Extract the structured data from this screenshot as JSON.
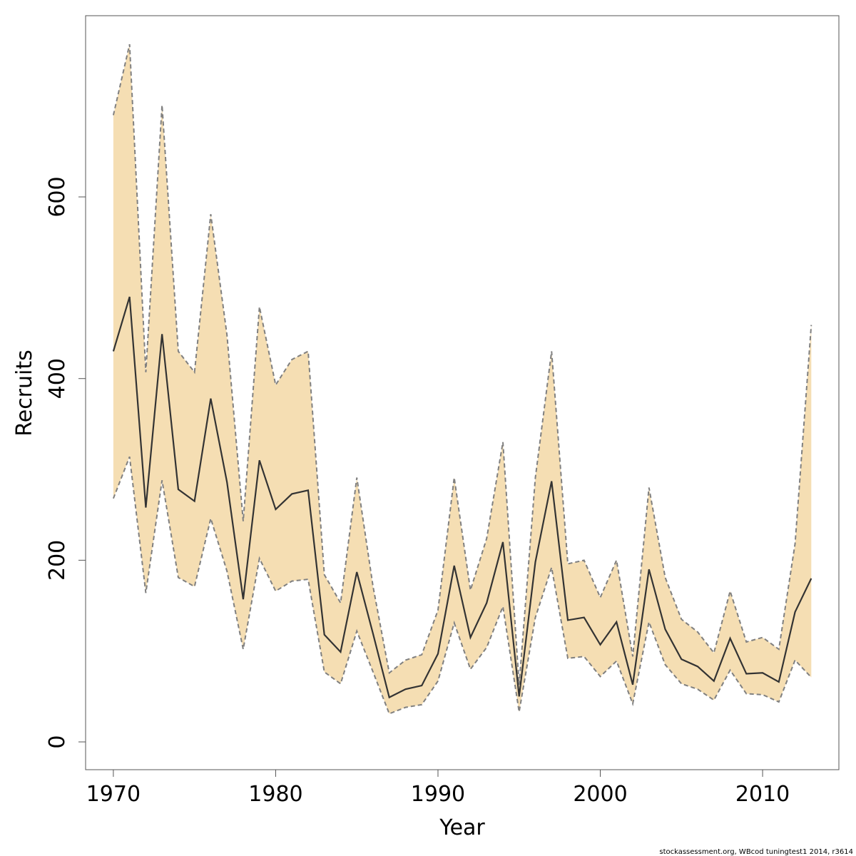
{
  "chart_data": {
    "type": "line",
    "xlabel": "Year",
    "ylabel": "Recruits",
    "x": [
      1970,
      1971,
      1972,
      1973,
      1974,
      1975,
      1976,
      1977,
      1978,
      1979,
      1980,
      1981,
      1982,
      1983,
      1984,
      1985,
      1986,
      1987,
      1988,
      1989,
      1990,
      1991,
      1992,
      1993,
      1994,
      1995,
      1996,
      1997,
      1998,
      1999,
      2000,
      2001,
      2002,
      2003,
      2004,
      2005,
      2006,
      2007,
      2008,
      2009,
      2010,
      2011,
      2012,
      2013
    ],
    "values": [
      430,
      490,
      258,
      449,
      278,
      265,
      378,
      286,
      157,
      310,
      256,
      273,
      277,
      118,
      99,
      187,
      119,
      49,
      58,
      62,
      97,
      194,
      115,
      153,
      220,
      50,
      198,
      287,
      134,
      137,
      107,
      132,
      63,
      190,
      124,
      91,
      83,
      67,
      114,
      75,
      76,
      66,
      143,
      180
    ],
    "lower": [
      268,
      314,
      164,
      288,
      181,
      171,
      246,
      188,
      102,
      202,
      166,
      177,
      179,
      77,
      64,
      122,
      77,
      31,
      38,
      41,
      67,
      131,
      80,
      104,
      149,
      33,
      137,
      192,
      92,
      94,
      72,
      89,
      42,
      132,
      85,
      64,
      58,
      46,
      79,
      53,
      52,
      44,
      90,
      71
    ],
    "upper": [
      690,
      768,
      407,
      701,
      430,
      407,
      581,
      448,
      243,
      479,
      393,
      421,
      430,
      184,
      153,
      291,
      171,
      76,
      90,
      96,
      145,
      291,
      167,
      224,
      330,
      63,
      291,
      430,
      196,
      200,
      159,
      200,
      94,
      280,
      181,
      135,
      121,
      98,
      166,
      110,
      115,
      102,
      218,
      459
    ],
    "xlim": [
      1968.29,
      2014.7
    ],
    "ylim": [
      -30.6,
      799.5
    ],
    "xticks": [
      1970,
      1980,
      1990,
      2000,
      2010
    ],
    "yticks": [
      0,
      200,
      400,
      600
    ],
    "color": "#333333",
    "band_color": "#f5deb3",
    "bound_color": "#808080"
  },
  "footer": "stockassessment.org, WBcod tuningtest1 2014, r3614"
}
